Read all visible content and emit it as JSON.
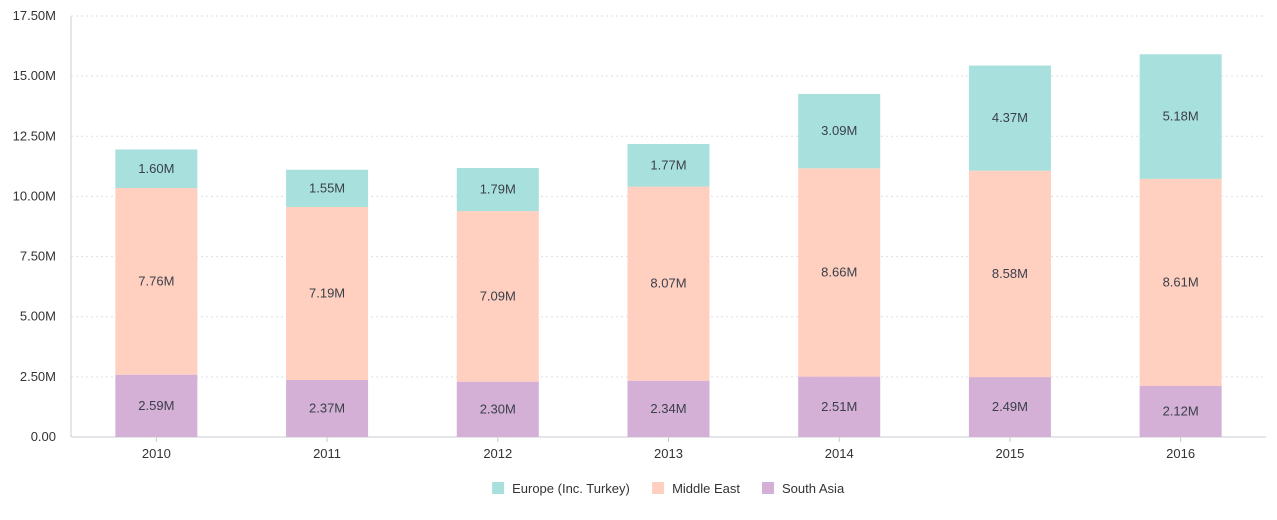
{
  "chart_data": {
    "type": "bar",
    "stacked": true,
    "categories": [
      "2010",
      "2011",
      "2012",
      "2013",
      "2014",
      "2015",
      "2016"
    ],
    "series": [
      {
        "name": "South Asia",
        "color": "#d4afd6",
        "values": [
          2.59,
          2.37,
          2.3,
          2.34,
          2.51,
          2.49,
          2.12
        ],
        "labels": [
          "2.59M",
          "2.37M",
          "2.30M",
          "2.34M",
          "2.51M",
          "2.49M",
          "2.12M"
        ]
      },
      {
        "name": "Middle East",
        "color": "#ffcfc0",
        "values": [
          7.76,
          7.19,
          7.09,
          8.07,
          8.66,
          8.58,
          8.61
        ],
        "labels": [
          "7.76M",
          "7.19M",
          "7.09M",
          "8.07M",
          "8.66M",
          "8.58M",
          "8.61M"
        ]
      },
      {
        "name": "Europe (Inc. Turkey)",
        "color": "#a8e0dd",
        "values": [
          1.6,
          1.55,
          1.79,
          1.77,
          3.09,
          4.37,
          5.18
        ],
        "labels": [
          "1.60M",
          "1.55M",
          "1.79M",
          "1.77M",
          "3.09M",
          "4.37M",
          "5.18M"
        ]
      }
    ],
    "ylim": [
      0,
      17.5
    ],
    "yticks": [
      0,
      2.5,
      5,
      7.5,
      10,
      12.5,
      15,
      17.5
    ],
    "ytick_labels": [
      "0.00",
      "2.50M",
      "5.00M",
      "7.50M",
      "10.00M",
      "12.50M",
      "15.00M",
      "17.50M"
    ],
    "legend_order": [
      "Europe (Inc. Turkey)",
      "Middle East",
      "South Asia"
    ],
    "legend_position": "bottom-center",
    "grid": true
  }
}
